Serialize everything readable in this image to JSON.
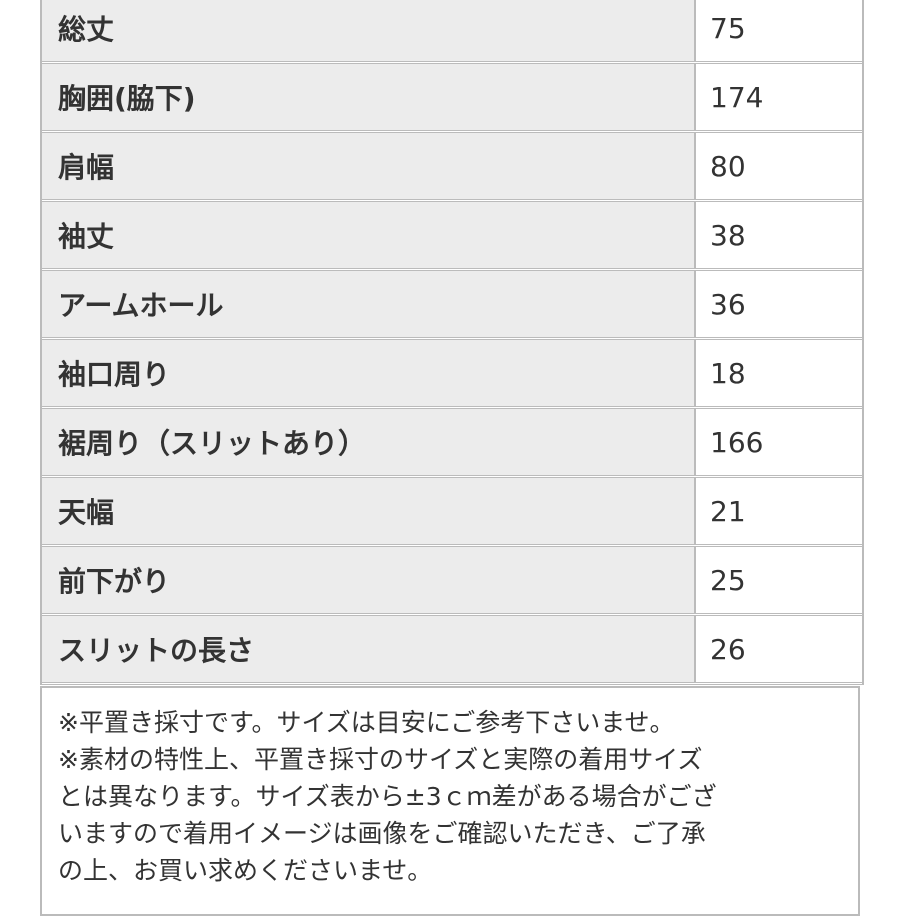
{
  "table": {
    "rows": [
      [
        "総丈",
        75
      ],
      [
        "胸囲(脇下)",
        174
      ],
      [
        "肩幅",
        80
      ],
      [
        "袖丈",
        38
      ],
      [
        "アームホール",
        36
      ],
      [
        "袖口周り",
        18
      ],
      [
        "裾周り（スリットあり）",
        166
      ],
      [
        "天幅",
        21
      ],
      [
        "前下がり",
        25
      ],
      [
        "スリットの長さ",
        26
      ]
    ]
  },
  "notes": [
    "※平置き採寸です。サイズは目安にご参考下さいませ。",
    "※素材の特性上、平置き採寸のサイズと実際の着用サイズ",
    "とは異なります。サイズ表から±3ｃｍ差がある場合がござ",
    "いますので着用イメージは画像をご確認いただき、ご了承",
    "の上、お買い求めくださいませ。"
  ]
}
